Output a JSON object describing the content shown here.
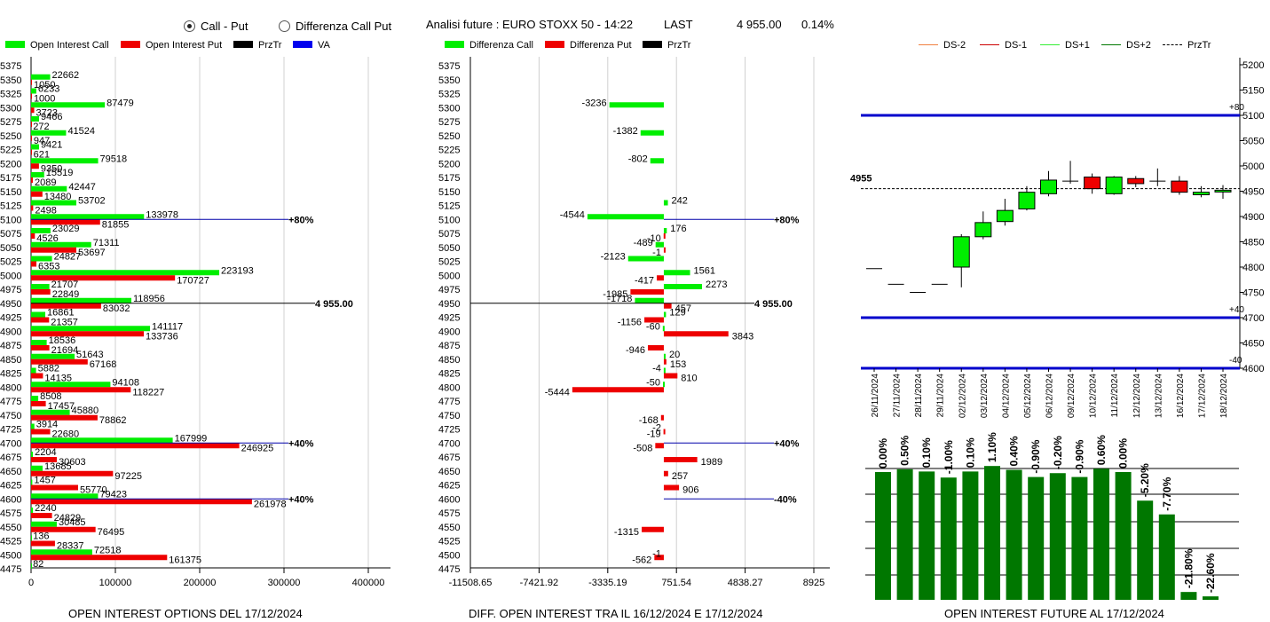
{
  "header": {
    "radio_call_put": "Call - Put",
    "radio_diff": "Differenza Call Put",
    "analysis": "Analisi future : EURO STOXX 50 - 14:22",
    "last_label": "LAST",
    "last_value": "4 955.00",
    "last_change": "0.14%"
  },
  "panel1": {
    "legend": [
      {
        "label": "Open Interest Call",
        "color": "#00ee00"
      },
      {
        "label": "Open Interest Put",
        "color": "#ee0000"
      },
      {
        "label": "PrzTr",
        "color": "#000000"
      },
      {
        "label": "VA",
        "color": "#0000ee"
      }
    ],
    "footer": "OPEN INTEREST OPTIONS DEL 17/12/2024"
  },
  "panel2": {
    "legend": [
      {
        "label": "Differenza Call",
        "color": "#00ee00"
      },
      {
        "label": "Differenza Put",
        "color": "#ee0000"
      },
      {
        "label": "PrzTr",
        "color": "#000000"
      }
    ],
    "footer": "DIFF. OPEN INTEREST TRA IL 16/12/2024 E 17/12/2024"
  },
  "panel3": {
    "legend": [
      {
        "label": "DS-2",
        "color": "#f08040",
        "style": "solid"
      },
      {
        "label": "DS-1",
        "color": "#cc0000",
        "style": "solid"
      },
      {
        "label": "DS+1",
        "color": "#33ee33",
        "style": "solid"
      },
      {
        "label": "DS+2",
        "color": "#007700",
        "style": "solid"
      },
      {
        "label": "PrzTr",
        "color": "#000000",
        "style": "dashed"
      }
    ],
    "footer": "OPEN INTEREST FUTURE AL 17/12/2024"
  },
  "chart_data": [
    {
      "type": "bar",
      "orientation": "horizontal",
      "strikes": [
        "5375",
        "5350",
        "5325",
        "5300",
        "5275",
        "5250",
        "5225",
        "5200",
        "5175",
        "5150",
        "5125",
        "5100",
        "5075",
        "5050",
        "5025",
        "5000",
        "4975",
        "4950",
        "4925",
        "4900",
        "4875",
        "4850",
        "4825",
        "4800",
        "4775",
        "4750",
        "4725",
        "4700",
        "4675",
        "4650",
        "4625",
        "4600",
        "4575",
        "4550",
        "4525",
        "4500",
        "4475"
      ],
      "series": [
        {
          "name": "Open Interest Call",
          "color": "#00ee00",
          "values": [
            null,
            22662,
            6233,
            87479,
            9466,
            41524,
            9421,
            79518,
            15519,
            42447,
            53702,
            133978,
            23029,
            71311,
            24827,
            223193,
            21707,
            118956,
            16861,
            141117,
            18536,
            51643,
            5882,
            94108,
            8508,
            45880,
            3914,
            167999,
            2204,
            13685,
            1457,
            79423,
            2240,
            30485,
            136,
            72518,
            82
          ]
        },
        {
          "name": "Open Interest Put",
          "color": "#ee0000",
          "values": [
            null,
            1050,
            1000,
            3723,
            272,
            947,
            621,
            9350,
            2089,
            13480,
            2498,
            81855,
            4526,
            53697,
            6353,
            170727,
            22849,
            83032,
            21357,
            133736,
            21694,
            67168,
            14135,
            118227,
            17457,
            78862,
            22680,
            246925,
            30603,
            97225,
            55770,
            261978,
            24829,
            76495,
            28337,
            161375,
            null
          ]
        }
      ],
      "reference_lines": [
        {
          "strike": "5100",
          "label": "80%",
          "color": "#0000aa"
        },
        {
          "strike": "4950",
          "label": "4 955.00",
          "color": "#000000"
        },
        {
          "strike": "4700",
          "label": "40%",
          "color": "#0000aa"
        },
        {
          "strike": "4600",
          "label": "40%",
          "color": "#0000aa"
        }
      ],
      "x_ticks": [
        "0",
        "100000",
        "200000",
        "300000",
        "400000"
      ],
      "xlim": [
        0,
        420000
      ]
    },
    {
      "type": "bar",
      "orientation": "horizontal",
      "strikes": [
        "5375",
        "5350",
        "5325",
        "5300",
        "5275",
        "5250",
        "5225",
        "5200",
        "5175",
        "5150",
        "5125",
        "5100",
        "5075",
        "5050",
        "5025",
        "5000",
        "4975",
        "4950",
        "4925",
        "4900",
        "4875",
        "4850",
        "4825",
        "4800",
        "4775",
        "4750",
        "4725",
        "4700",
        "4675",
        "4650",
        "4625",
        "4600",
        "4575",
        "4550",
        "4525",
        "4500",
        "4475"
      ],
      "series": [
        {
          "name": "Differenza Call",
          "color": "#00ee00",
          "values": [
            null,
            null,
            null,
            -3236,
            null,
            -1382,
            null,
            -802,
            null,
            null,
            242,
            -4544,
            176,
            -489,
            -2123,
            1561,
            2273,
            -1718,
            129,
            -60,
            null,
            20,
            -4,
            -50,
            null,
            null,
            null,
            null,
            null,
            null,
            null,
            null,
            null,
            null,
            null,
            null,
            null
          ]
        },
        {
          "name": "Differenza Put",
          "color": "#ee0000",
          "values": [
            null,
            null,
            null,
            null,
            null,
            null,
            null,
            null,
            null,
            null,
            null,
            null,
            -10,
            -1,
            null,
            -417,
            -1985,
            457,
            -1156,
            3843,
            -946,
            153,
            810,
            -5444,
            null,
            -168,
            -19,
            -508,
            1989,
            257,
            906,
            null,
            null,
            -1315,
            null,
            -562,
            null
          ]
        }
      ],
      "extra_labels": [
        {
          "strike": "4725",
          "text": "-2"
        },
        {
          "strike": "4500",
          "text": "-1"
        }
      ],
      "reference_lines": [
        {
          "strike": "5100",
          "label": "80%",
          "color": "#0000aa"
        },
        {
          "strike": "4950",
          "label": "4 955.00",
          "color": "#000000"
        },
        {
          "strike": "4700",
          "label": "40%",
          "color": "#0000aa"
        },
        {
          "strike": "4600",
          "label": "-40%",
          "color": "#0000aa"
        }
      ],
      "x_ticks": [
        "-11508.65",
        "-7421.92",
        "-3335.19",
        "751.54",
        "4838.27",
        "8925"
      ],
      "xlim": [
        -11508.65,
        8925
      ]
    },
    {
      "type": "candlestick",
      "dates": [
        "26/11/2024",
        "27/11/2024",
        "28/11/2024",
        "29/11/2024",
        "02/12/2024",
        "03/12/2024",
        "04/12/2024",
        "05/12/2024",
        "06/12/2024",
        "09/12/2024",
        "10/12/2024",
        "11/12/2024",
        "12/12/2024",
        "13/12/2024",
        "16/12/2024",
        "17/12/2024",
        "18/12/2024"
      ],
      "ohlc": [
        [
          4797,
          4797,
          4797,
          4797
        ],
        [
          4766,
          4766,
          4766,
          4766
        ],
        [
          4750,
          4750,
          4750,
          4750
        ],
        [
          4766,
          4766,
          4766,
          4766
        ],
        [
          4800,
          4865,
          4760,
          4860
        ],
        [
          4860,
          4910,
          4855,
          4888
        ],
        [
          4890,
          4935,
          4882,
          4912
        ],
        [
          4915,
          4960,
          4912,
          4948
        ],
        [
          4945,
          4990,
          4940,
          4972
        ],
        [
          4970,
          5010,
          4965,
          4970
        ],
        [
          4978,
          4985,
          4945,
          4955
        ],
        [
          4945,
          4980,
          4943,
          4978
        ],
        [
          4975,
          4980,
          4958,
          4965
        ],
        [
          4970,
          4995,
          4960,
          4970
        ],
        [
          4970,
          4980,
          4943,
          4948
        ],
        [
          4943,
          4960,
          4938,
          4948
        ],
        [
          4950,
          4962,
          4935,
          4952
        ]
      ],
      "candle_colors": [
        "",
        "",
        "",
        "",
        "#00ee00",
        "#00ee00",
        "#00ee00",
        "#00ee00",
        "#00ee00",
        "",
        "#ee0000",
        "#00ee00",
        "#ee0000",
        "",
        "#ee0000",
        "#00ee00",
        "#00ee00"
      ],
      "y_ticks": [
        "5200",
        "5150",
        "5100",
        "5050",
        "5000",
        "4950",
        "4900",
        "4850",
        "4800",
        "4750",
        "4700",
        "4650",
        "4600"
      ],
      "ylim": [
        4600,
        5200
      ],
      "prztr": 4955,
      "prztr_label": "4955",
      "levels": [
        {
          "value": 5100,
          "label": "+80",
          "color": "#0000cc"
        },
        {
          "value": 4700,
          "label": "+40",
          "color": "#0000cc"
        },
        {
          "value": 4600,
          "label": "-40",
          "color": "#0000cc"
        }
      ]
    },
    {
      "type": "bar",
      "categories": [
        "26/11/2024",
        "27/11/2024",
        "28/11/2024",
        "29/11/2024",
        "02/12/2024",
        "03/12/2024",
        "04/12/2024",
        "05/12/2024",
        "06/12/2024",
        "09/12/2024",
        "10/12/2024",
        "11/12/2024",
        "12/12/2024",
        "13/12/2024",
        "16/12/2024",
        "17/12/2024"
      ],
      "labels": [
        "0.00%",
        "0.50%",
        "0.10%",
        "-1.00%",
        "0.10%",
        "1.10%",
        "0.40%",
        "-0.90%",
        "-0.20%",
        "-0.90%",
        "0.60%",
        "0.00%",
        "-5.20%",
        "-7.70%",
        "-21.80%",
        "-22.60%"
      ],
      "values": [
        0.0,
        0.5,
        0.1,
        -1.0,
        0.1,
        1.1,
        0.4,
        -0.9,
        -0.2,
        -0.9,
        0.6,
        0.0,
        -5.2,
        -7.7,
        -21.8,
        -22.6
      ],
      "color": "#007700"
    }
  ]
}
